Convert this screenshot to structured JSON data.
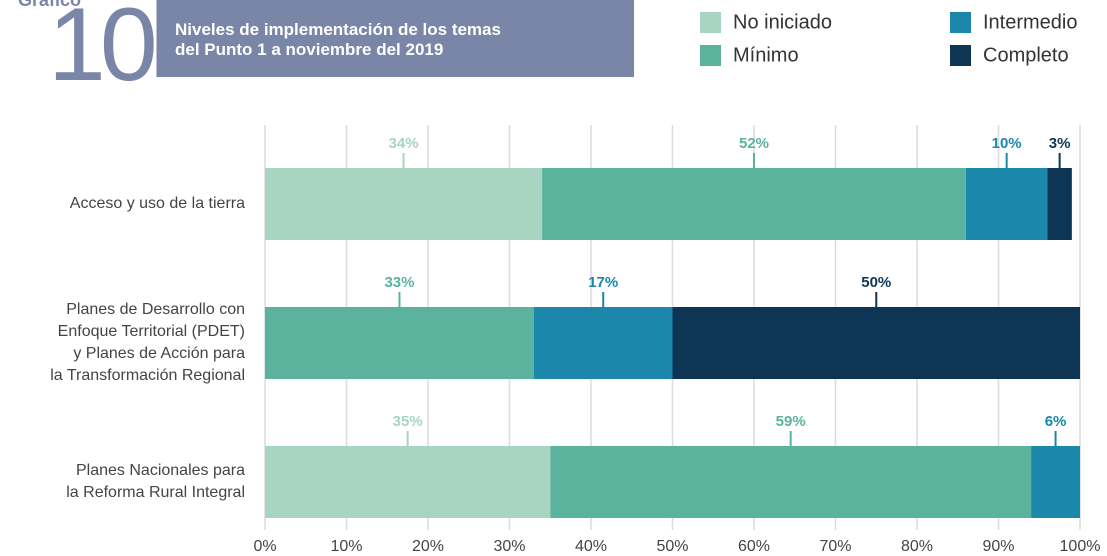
{
  "chart_data": {
    "type": "stacked_barh",
    "kicker": "Gráfico",
    "number": "10",
    "title": "Niveles de implementación de los temas\ndel Punto 1 a noviembre del 2019",
    "categories": [
      "Acceso y uso de la tierra",
      "Planes de Desarrollo con\nEnfoque Territorial (PDET)\ny Planes de Acción para\nla Transformación Regional",
      "Planes Nacionales para\nla Reforma Rural Integral"
    ],
    "series": [
      {
        "name": "No iniciado",
        "color": "#a8d5c1",
        "values": [
          34,
          null,
          35
        ],
        "value_labels": [
          "34%",
          null,
          "35%"
        ]
      },
      {
        "name": "Mínimo",
        "color": "#5bb39e",
        "values": [
          52,
          33,
          59
        ],
        "value_labels": [
          "52%",
          "33%",
          "59%"
        ]
      },
      {
        "name": "Intermedio",
        "color": "#1a87ab",
        "values": [
          10,
          17,
          6
        ],
        "value_labels": [
          "10%",
          "17%",
          "6%"
        ]
      },
      {
        "name": "Completo",
        "color": "#0f3554",
        "values": [
          3,
          50,
          null
        ],
        "value_labels": [
          "3%",
          "50%",
          null
        ]
      }
    ],
    "xlim": [
      0,
      100
    ],
    "xticks": [
      {
        "value": 0,
        "label": "0%"
      },
      {
        "value": 10,
        "label": "10%"
      },
      {
        "value": 20,
        "label": "20%"
      },
      {
        "value": 30,
        "label": "30%"
      },
      {
        "value": 40,
        "label": "40%"
      },
      {
        "value": 50,
        "label": "50%"
      },
      {
        "value": 60,
        "label": "60%"
      },
      {
        "value": 70,
        "label": "70%"
      },
      {
        "value": 80,
        "label": "80%"
      },
      {
        "value": 90,
        "label": "90%"
      },
      {
        "value": 100,
        "label": "100%"
      }
    ],
    "grid": true
  }
}
